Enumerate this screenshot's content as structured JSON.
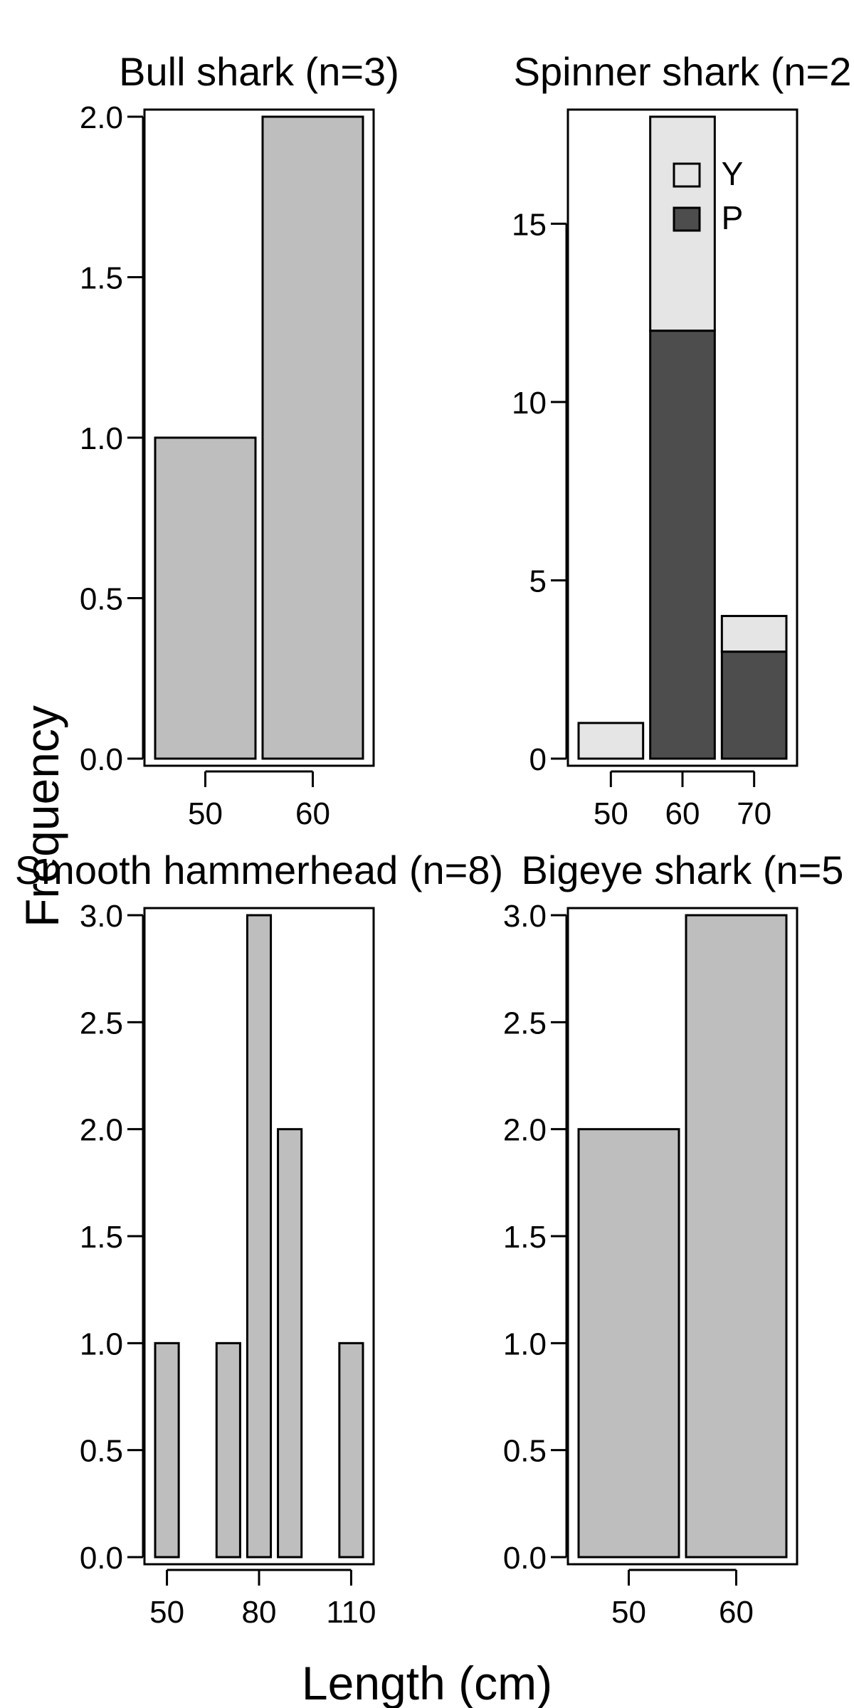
{
  "figure": {
    "ylabel": "Frequency",
    "xlabel": "Length (cm)"
  },
  "chart_data": [
    {
      "type": "bar",
      "title": "Bull shark (n=3)",
      "bars": [
        {
          "x": 50,
          "width": 10,
          "value": 1
        },
        {
          "x": 60,
          "width": 10,
          "value": 2
        }
      ],
      "xlim": [
        45,
        65
      ],
      "ylim": [
        0,
        2
      ],
      "yticks": [
        0,
        0.5,
        1,
        1.5,
        2
      ],
      "ytick_labels": [
        "0.0",
        "0.5",
        "1.0",
        "1.5",
        "2.0"
      ],
      "xticks": [
        50,
        60
      ],
      "xtick_labels": [
        "50",
        "60"
      ],
      "color": "#bebebe"
    },
    {
      "type": "bar",
      "stacked": true,
      "title": "Spinner shark (n=2",
      "categories": [
        50,
        60,
        70
      ],
      "series": [
        {
          "name": "P",
          "values": [
            0,
            12,
            3
          ],
          "color": "#4d4d4d"
        },
        {
          "name": "Y",
          "values": [
            1,
            6,
            1
          ],
          "color": "#e5e5e5"
        }
      ],
      "xlim": [
        45,
        75
      ],
      "ylim": [
        0,
        18
      ],
      "yticks": [
        0,
        5,
        10,
        15
      ],
      "ytick_labels": [
        "0",
        "5",
        "10",
        "15"
      ],
      "xticks": [
        50,
        60,
        70
      ],
      "xtick_labels": [
        "50",
        "60",
        "70"
      ],
      "legend": {
        "placement": "top-right",
        "entries": [
          "Y",
          "P"
        ]
      }
    },
    {
      "type": "bar",
      "title": "Smooth hammerhead (n=8)",
      "bars": [
        {
          "x": 50,
          "width": 10,
          "value": 1
        },
        {
          "x": 70,
          "width": 10,
          "value": 1
        },
        {
          "x": 80,
          "width": 10,
          "value": 3
        },
        {
          "x": 90,
          "width": 10,
          "value": 2
        },
        {
          "x": 110,
          "width": 10,
          "value": 1
        }
      ],
      "xlim": [
        45,
        115
      ],
      "ylim": [
        0,
        3
      ],
      "yticks": [
        0,
        0.5,
        1,
        1.5,
        2,
        2.5,
        3
      ],
      "ytick_labels": [
        "0.0",
        "0.5",
        "1.0",
        "1.5",
        "2.0",
        "2.5",
        "3.0"
      ],
      "xticks": [
        50,
        80,
        110
      ],
      "xtick_labels": [
        "50",
        "80",
        "110"
      ],
      "color": "#bebebe"
    },
    {
      "type": "bar",
      "title": "Bigeye shark (n=5",
      "bars": [
        {
          "x": 50,
          "width": 10,
          "value": 2
        },
        {
          "x": 60,
          "width": 10,
          "value": 3
        }
      ],
      "xlim": [
        45,
        65
      ],
      "ylim": [
        0,
        3
      ],
      "yticks": [
        0,
        0.5,
        1,
        1.5,
        2,
        2.5,
        3
      ],
      "ytick_labels": [
        "0.0",
        "0.5",
        "1.0",
        "1.5",
        "2.0",
        "2.5",
        "3.0"
      ],
      "xticks": [
        50,
        60
      ],
      "xtick_labels": [
        "50",
        "60"
      ],
      "color": "#bebebe"
    }
  ]
}
